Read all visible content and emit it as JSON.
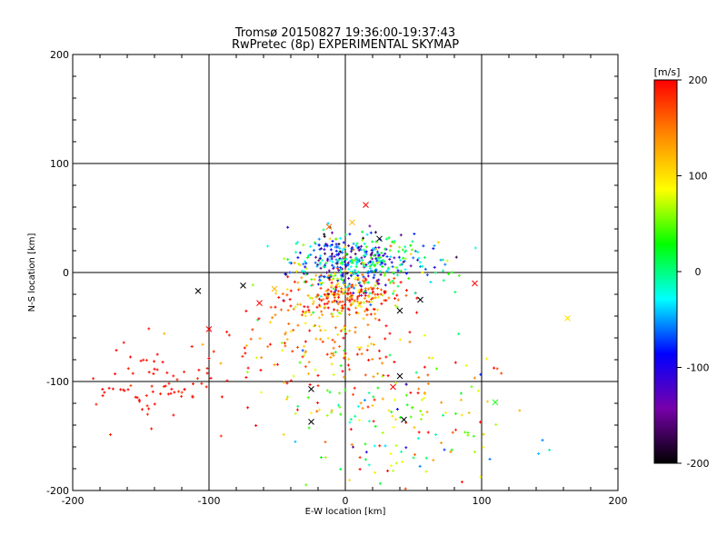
{
  "chart_data": {
    "type": "scatter",
    "title": "Tromsø 20150827 19:36:00-19:37:43",
    "subtitle": "RwPretec (8p) EXPERIMENTAL SKYMAP",
    "xlabel": "E-W location [km]",
    "ylabel": "N-S location [km]",
    "xlim": [
      -200,
      200
    ],
    "ylim": [
      -200,
      200
    ],
    "xticks": [
      "-200",
      "-100",
      "0",
      "100",
      "200"
    ],
    "yticks": [
      "-200",
      "-100",
      "0",
      "100",
      "200"
    ],
    "grid": true,
    "colorbar": {
      "label": "[m/s]",
      "min": -200,
      "max": 200,
      "ticks": [
        "200",
        "100",
        "0",
        "-100",
        "-200"
      ],
      "colormap": [
        "#000000",
        "#7700aa",
        "#0000ff",
        "#00ffff",
        "#00ff00",
        "#ffff00",
        "#ff8800",
        "#ff0000"
      ]
    },
    "clusters": [
      {
        "center": [
          0,
          10
        ],
        "spread": [
          20,
          14
        ],
        "count": 320,
        "velocity_mean": -60,
        "velocity_spread": 80,
        "marker": "plus"
      },
      {
        "center": [
          0,
          -20
        ],
        "spread": [
          22,
          10
        ],
        "count": 220,
        "velocity_mean": 150,
        "velocity_spread": 60,
        "marker": "plus"
      },
      {
        "center": [
          30,
          8
        ],
        "spread": [
          25,
          12
        ],
        "count": 140,
        "velocity_mean": -20,
        "velocity_spread": 60,
        "marker": "plus"
      },
      {
        "center": [
          -20,
          -60
        ],
        "spread": [
          30,
          25
        ],
        "count": 150,
        "velocity_mean": 150,
        "velocity_spread": 50,
        "marker": "plus"
      },
      {
        "center": [
          -130,
          -105
        ],
        "spread": [
          35,
          18
        ],
        "count": 90,
        "velocity_mean": 195,
        "velocity_spread": 10,
        "marker": "plus"
      },
      {
        "center": [
          30,
          -130
        ],
        "spread": [
          40,
          35
        ],
        "count": 140,
        "velocity_mean": 100,
        "velocity_spread": 80,
        "marker": "plus"
      },
      {
        "center": [
          60,
          -150
        ],
        "spread": [
          40,
          30
        ],
        "count": 50,
        "velocity_mean": 40,
        "velocity_spread": 60,
        "marker": "plus"
      }
    ],
    "x_markers": [
      {
        "x": -108,
        "y": -17,
        "v": -200
      },
      {
        "x": -75,
        "y": -12,
        "v": -200
      },
      {
        "x": -100,
        "y": -52,
        "v": 200
      },
      {
        "x": -63,
        "y": -28,
        "v": 200
      },
      {
        "x": -52,
        "y": -15,
        "v": 120
      },
      {
        "x": -25,
        "y": -107,
        "v": -200
      },
      {
        "x": -25,
        "y": -137,
        "v": -200
      },
      {
        "x": 15,
        "y": 62,
        "v": 200
      },
      {
        "x": 5,
        "y": 46,
        "v": 120
      },
      {
        "x": -12,
        "y": 42,
        "v": 150
      },
      {
        "x": 25,
        "y": 31,
        "v": -200
      },
      {
        "x": 40,
        "y": -95,
        "v": -200
      },
      {
        "x": 43,
        "y": -135,
        "v": -200
      },
      {
        "x": 55,
        "y": -25,
        "v": -200
      },
      {
        "x": 95,
        "y": -10,
        "v": 200
      },
      {
        "x": 163,
        "y": -42,
        "v": 100
      },
      {
        "x": 110,
        "y": -119,
        "v": 30
      },
      {
        "x": 40,
        "y": -35,
        "v": -200
      },
      {
        "x": 35,
        "y": -105,
        "v": 200
      }
    ]
  }
}
